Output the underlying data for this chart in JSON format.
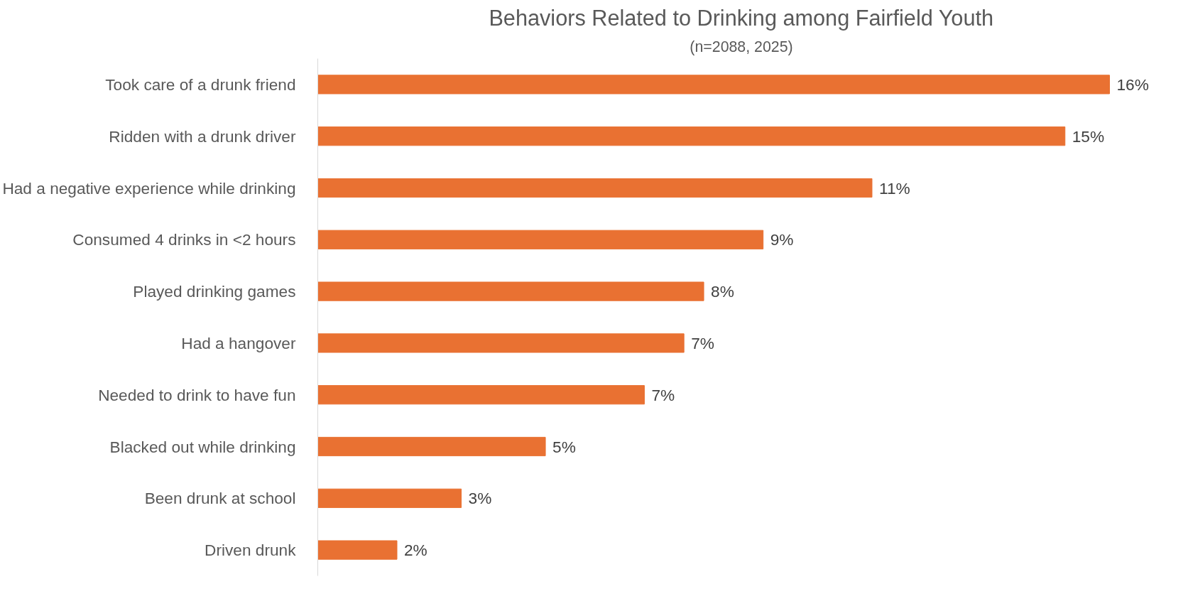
{
  "chart_data": {
    "type": "bar",
    "orientation": "horizontal",
    "title": "Behaviors Related to Drinking among Fairfield Youth",
    "subtitle": "(n=2088, 2025)",
    "categories": [
      "Took care of a drunk friend",
      "Ridden with a drunk driver",
      "Had a negative experience while drinking",
      "Consumed 4 drinks in <2 hours",
      "Played drinking games",
      "Had a hangover",
      "Needed to drink to have fun",
      "Blacked out while drinking",
      "Been drunk at school",
      "Driven drunk"
    ],
    "values": [
      16,
      15.1,
      11.2,
      9,
      7.8,
      7.4,
      6.6,
      4.6,
      2.9,
      1.6
    ],
    "value_labels": [
      "16%",
      "15%",
      "11%",
      "9%",
      "8%",
      "7%",
      "7%",
      "5%",
      "3%",
      "2%"
    ],
    "color": "#e97132",
    "grid": false
  }
}
